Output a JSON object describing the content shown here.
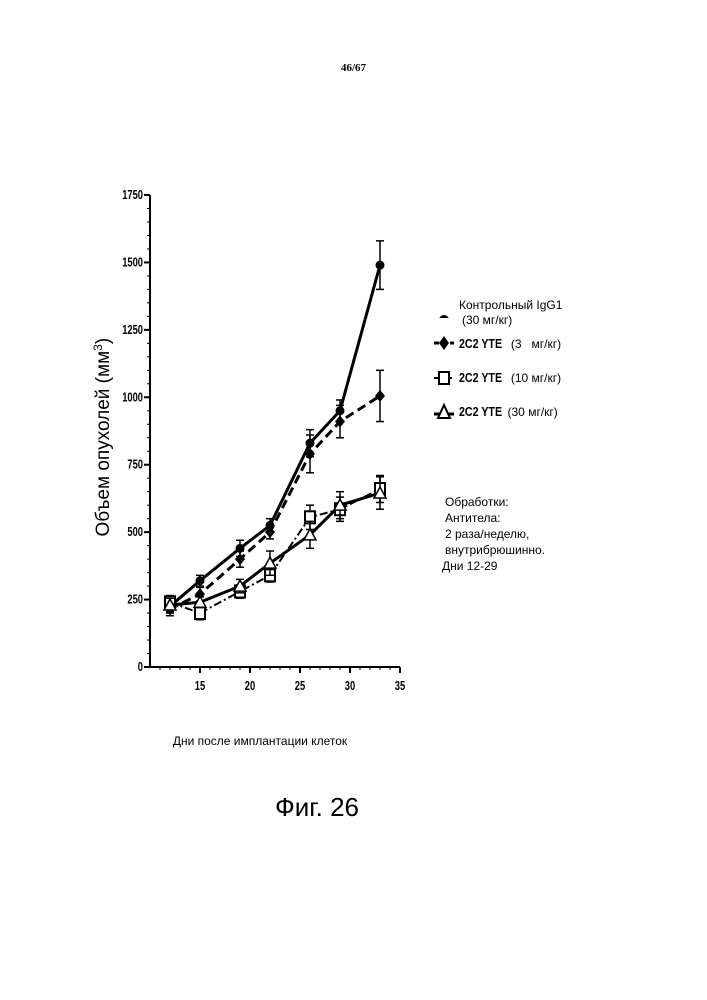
{
  "page_number": "46/67",
  "figure_label": "Фиг. 26",
  "treatment_note": [
    "Обработки:",
    "Антитела:",
    "2 раза/неделю,",
    "внутрибрюшинно.",
    "Дни 12-29"
  ],
  "chart_data": {
    "type": "line",
    "title": "",
    "xlabel": "Дни после имплантации клеток",
    "ylabel_main": "Объем опухолей (мм",
    "ylabel_sup": "3",
    "ylabel_tail": ")",
    "xlim": [
      10,
      35
    ],
    "ylim": [
      0,
      1750
    ],
    "xticks": [
      "15",
      "20",
      "25",
      "30",
      "35"
    ],
    "yticks": [
      "0",
      "250",
      "500",
      "750",
      "1000",
      "1250",
      "1500",
      "1750"
    ],
    "x": [
      12,
      15,
      19,
      22,
      26,
      29,
      33
    ],
    "series": [
      {
        "name": "Контрольный IgG1 (30 мг/кг)",
        "legend_main": "Контрольный IgG1",
        "legend_sub": "(30 мг/кг)",
        "marker": "circle",
        "line": "solid",
        "values": [
          225,
          320,
          440,
          525,
          830,
          950,
          1490
        ],
        "err": [
          25,
          20,
          30,
          25,
          50,
          40,
          90
        ]
      },
      {
        "name": "2C2 YTE (3 мг/кг)",
        "legend_main": "2C2 YTE",
        "legend_sub": "(3   мг/кг)",
        "marker": "diamond",
        "line": "dashed",
        "values": [
          215,
          270,
          400,
          500,
          790,
          910,
          1005
        ],
        "err": [
          25,
          25,
          30,
          25,
          70,
          60,
          95
        ]
      },
      {
        "name": "2C2 YTE (10 мг/кг)",
        "legend_main": "2C2 YTE",
        "legend_sub": "(10 мг/кг)",
        "marker": "square",
        "line": "dashdot",
        "values": [
          240,
          200,
          280,
          340,
          555,
          585,
          660
        ],
        "err": [
          25,
          25,
          25,
          25,
          45,
          45,
          50
        ]
      },
      {
        "name": "2C2 YTE (30 мг/кг)",
        "legend_main": "2C2 YTE",
        "legend_sub": "(30 мг/кг)",
        "marker": "triangle",
        "line": "solid",
        "values": [
          230,
          240,
          300,
          385,
          490,
          600,
          645
        ],
        "err": [
          25,
          20,
          25,
          45,
          50,
          50,
          60
        ]
      }
    ]
  }
}
